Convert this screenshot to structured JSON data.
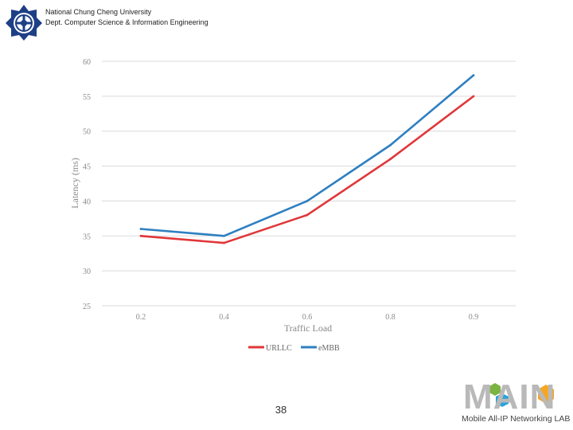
{
  "header": {
    "university": "National Chung Cheng University",
    "department": "Dept. Computer Science & Information Engineering"
  },
  "page_number": "38",
  "lab": {
    "name": "MAIN",
    "tagline": "Mobile All-IP Networking LAB"
  },
  "colors": {
    "urllc": "#e0373a",
    "embb": "#2e7fc1",
    "grid": "#d9d9d9",
    "tick_text": "#8a8a8a"
  },
  "chart_data": {
    "type": "line",
    "title": "",
    "xlabel": "Traffic Load",
    "ylabel": "Latency (ms)",
    "x": [
      0.2,
      0.4,
      0.6,
      0.8,
      0.9
    ],
    "x_tick_labels": [
      "0.2",
      "0.4",
      "0.6",
      "0.8",
      "0.9"
    ],
    "ylim": [
      25,
      60
    ],
    "y_ticks": [
      25,
      30,
      35,
      40,
      45,
      50,
      55,
      60
    ],
    "series": [
      {
        "name": "URLLC",
        "values": [
          35,
          34,
          38,
          46,
          55
        ]
      },
      {
        "name": "eMBB",
        "values": [
          36,
          35,
          40,
          48,
          58
        ]
      }
    ],
    "legend_position": "bottom-center",
    "grid": true
  }
}
